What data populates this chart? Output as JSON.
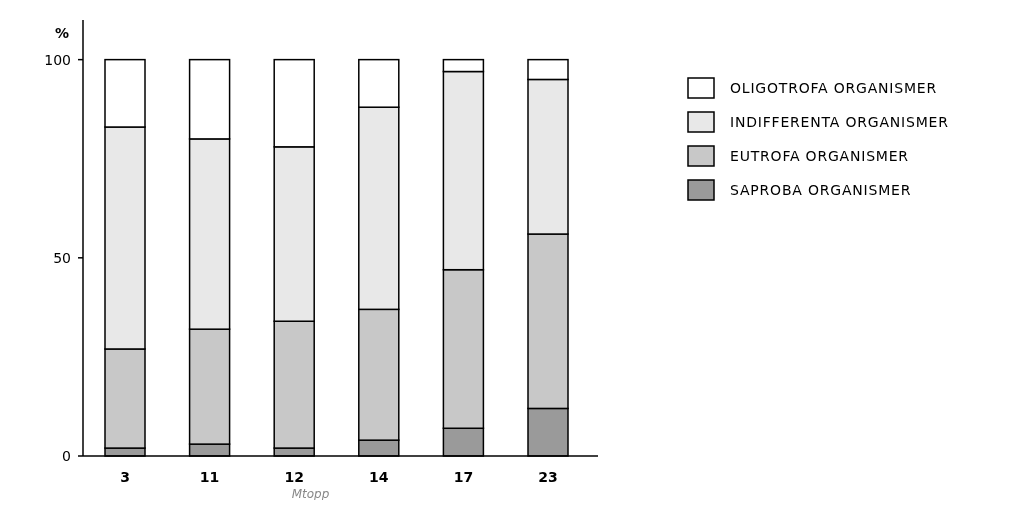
{
  "chart_data": {
    "type": "bar",
    "stacked": true,
    "ylabel": "%",
    "xlabel": "Mtopp",
    "categories": [
      "3",
      "11",
      "12",
      "14",
      "17",
      "23"
    ],
    "ylim": [
      0,
      110
    ],
    "yticks": [
      0,
      50,
      100
    ],
    "legend": "right",
    "grid": false,
    "series": [
      {
        "name": "SAPROBA ORGANISMER",
        "color": "#9a9a9a",
        "values": [
          2,
          3,
          2,
          4,
          7,
          12
        ]
      },
      {
        "name": "EUTROFA ORGANISMER",
        "color": "#c8c8c8",
        "values": [
          25,
          29,
          32,
          33,
          40,
          44
        ]
      },
      {
        "name": "INDIFFERENTA ORGANISMER",
        "color": "#e8e8e8",
        "values": [
          56,
          48,
          44,
          51,
          50,
          39
        ]
      },
      {
        "name": "OLIGOTROFA ORGANISMER",
        "color": "#ffffff",
        "values": [
          17,
          20,
          22,
          12,
          3,
          5
        ]
      }
    ]
  }
}
